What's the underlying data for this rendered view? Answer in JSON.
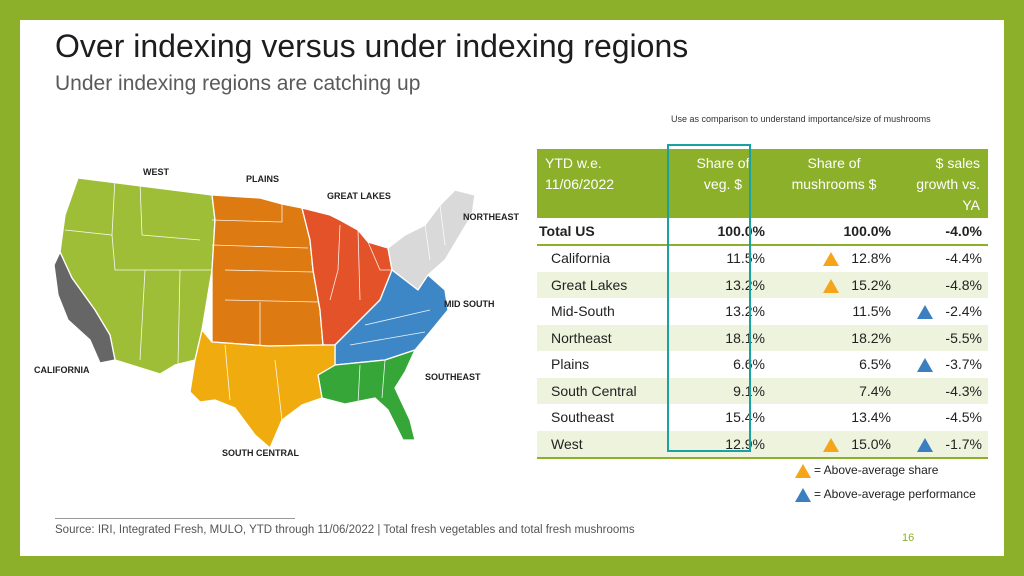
{
  "title": "Over indexing versus under indexing regions",
  "subtitle": "Under indexing regions are catching up",
  "comparison_note": "Use as comparison to understand importance/size of mushrooms",
  "map": {
    "labels": {
      "west": "WEST",
      "plains": "PLAINS",
      "great_lakes": "GREAT LAKES",
      "northeast": "NORTHEAST",
      "mid_south": "MID SOUTH",
      "california": "CALIFORNIA",
      "southeast": "SOUTHEAST",
      "south_central": "SOUTH CENTRAL"
    },
    "colors": {
      "west": "#9fbe37",
      "california": "#666666",
      "plains": "#dd7a12",
      "great_lakes": "#e35229",
      "northeast": "#d9d9d9",
      "mid_south": "#3e87c7",
      "southeast": "#35a637",
      "south_central": "#f0ab0f"
    }
  },
  "table": {
    "headers": [
      "YTD w.e. 11/06/2022",
      "Share of veg. $",
      "Share of mushrooms $",
      "$ sales growth vs. YA"
    ],
    "rows": [
      {
        "name": "Total US",
        "veg": "100.0%",
        "mush": "100.0%",
        "growth": "-4.0%",
        "mush_marker": "",
        "growth_marker": ""
      },
      {
        "name": "California",
        "veg": "11.5%",
        "mush": "12.8%",
        "growth": "-4.4%",
        "mush_marker": "orange",
        "growth_marker": ""
      },
      {
        "name": "Great Lakes",
        "veg": "13.2%",
        "mush": "15.2%",
        "growth": "-4.8%",
        "mush_marker": "orange",
        "growth_marker": ""
      },
      {
        "name": "Mid-South",
        "veg": "13.2%",
        "mush": "11.5%",
        "growth": "-2.4%",
        "mush_marker": "",
        "growth_marker": "blue"
      },
      {
        "name": "Northeast",
        "veg": "18.1%",
        "mush": "18.2%",
        "growth": "-5.5%",
        "mush_marker": "",
        "growth_marker": ""
      },
      {
        "name": "Plains",
        "veg": "6.6%",
        "mush": "6.5%",
        "growth": "-3.7%",
        "mush_marker": "",
        "growth_marker": "blue"
      },
      {
        "name": "South Central",
        "veg": "9.1%",
        "mush": "7.4%",
        "growth": "-4.3%",
        "mush_marker": "",
        "growth_marker": ""
      },
      {
        "name": "Southeast",
        "veg": "15.4%",
        "mush": "13.4%",
        "growth": "-4.5%",
        "mush_marker": "",
        "growth_marker": ""
      },
      {
        "name": "West",
        "veg": "12.9%",
        "mush": "15.0%",
        "growth": "-1.7%",
        "mush_marker": "orange",
        "growth_marker": "blue"
      }
    ]
  },
  "legend": {
    "orange_label": "= Above-average share",
    "blue_label": "= Above-average performance"
  },
  "source": "Source: IRI, Integrated Fresh, MULO, YTD through 11/06/2022 | Total fresh vegetables and total fresh mushrooms",
  "page_number": "16"
}
